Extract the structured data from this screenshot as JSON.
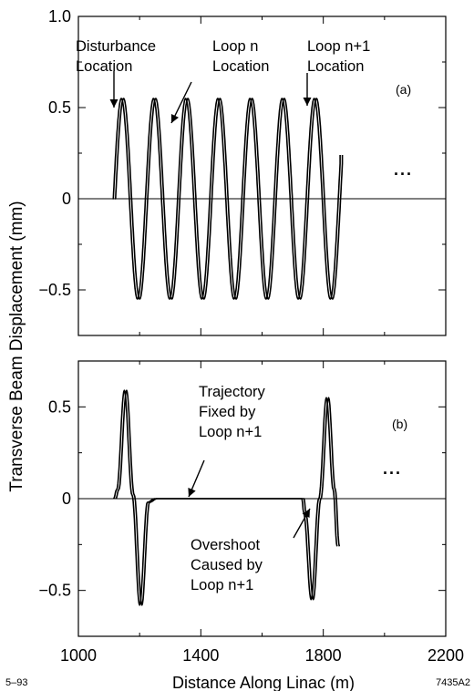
{
  "chart_data": {
    "shared_xlabel": "Distance Along Linac  (m)",
    "shared_ylabel": "Transverse Beam Displacement  (mm)",
    "footer_left": "5–93",
    "footer_right": "7435A2",
    "panels": [
      {
        "type": "line",
        "panel_label": "(a)",
        "xlim": [
          1000,
          2200
        ],
        "ylim": [
          -0.75,
          1.0
        ],
        "x_ticks": [
          1000,
          1400,
          1800,
          2200
        ],
        "y_ticks": [
          1.0,
          0.5,
          0,
          -0.5
        ],
        "y_tick_labels": [
          "1.0",
          "0.5",
          "0",
          "−0.5"
        ],
        "continuation": "...",
        "series": [
          {
            "start_x": 1112,
            "end_x": 1855,
            "wavelength": 105,
            "amplitude": 0.55,
            "x": [
              1112,
              1120,
              1138,
              1164,
              1190,
              1217,
              1243,
              1269,
              1296,
              1322,
              1348,
              1374,
              1401,
              1427,
              1453,
              1479,
              1506,
              1532,
              1558,
              1584,
              1611,
              1637,
              1663,
              1689,
              1716,
              1742,
              1768,
              1794,
              1821,
              1847,
              1855
            ],
            "y": [
              0,
              0.0,
              0.55,
              0,
              -0.55,
              0,
              0.55,
              0,
              -0.55,
              0,
              0.55,
              0,
              -0.55,
              0,
              0.55,
              0,
              -0.55,
              0,
              0.55,
              0,
              -0.55,
              0,
              0.55,
              0,
              -0.55,
              0,
              0.55,
              0,
              -0.55,
              0,
              0.24
            ]
          }
        ],
        "annotations": [
          {
            "lines": [
              "Disturbance",
              "Location"
            ],
            "data_x": 1090,
            "data_y": 0.52
          },
          {
            "lines": [
              "Loop n",
              "Location"
            ],
            "data_x": 1235,
            "data_y": 0.46
          },
          {
            "lines": [
              "Loop n+1",
              "Location"
            ],
            "data_x": 1725,
            "data_y": 0.49
          }
        ]
      },
      {
        "type": "line",
        "panel_label": "(b)",
        "xlim": [
          1000,
          2200
        ],
        "ylim": [
          -0.75,
          0.75
        ],
        "x_ticks": [
          1000,
          1400,
          1800,
          2200
        ],
        "y_ticks": [
          0.5,
          0,
          -0.5
        ],
        "y_tick_labels": [
          "0.5",
          "0",
          "−0.5"
        ],
        "continuation": "...",
        "series": [
          {
            "x": [
              1115,
              1125,
              1150,
              1175,
              1200,
              1225,
              1250,
              1300,
              1400,
              1500,
              1600,
              1700,
              1730,
              1736,
              1760,
              1785,
              1810,
              1832,
              1845
            ],
            "y": [
              0,
              0.05,
              0.59,
              0.02,
              -0.58,
              -0.02,
              0,
              0,
              0,
              0,
              0,
              0,
              0,
              -0.08,
              -0.55,
              0.0,
              0.55,
              0.05,
              -0.26
            ]
          }
        ],
        "annotations": [
          {
            "lines": [
              "Trajectory",
              "Fixed by",
              "Loop n+1"
            ],
            "data_x": 1345,
            "data_y": 0.0
          },
          {
            "lines": [
              "Overshoot",
              "Caused by",
              "Loop n+1"
            ],
            "data_x": 1728,
            "data_y": -0.08
          }
        ]
      }
    ]
  }
}
